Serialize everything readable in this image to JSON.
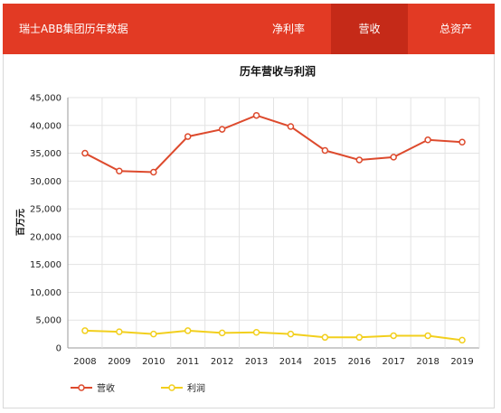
{
  "header": {
    "title": "瑞士ABB集团历年数据",
    "tabs": [
      {
        "label": "净利率",
        "active": false
      },
      {
        "label": "营收",
        "active": true
      },
      {
        "label": "总资产",
        "active": false
      }
    ]
  },
  "colors": {
    "brand": "#e23a24",
    "tab_active": "#c52a18",
    "revenue": "#dd4a2d",
    "profit": "#f2cf1d"
  },
  "chart_data": {
    "type": "line",
    "title": "历年营收与利润",
    "ylabel": "百万元",
    "xlabel": "",
    "categories": [
      "2008",
      "2009",
      "2010",
      "2011",
      "2012",
      "2013",
      "2014",
      "2015",
      "2016",
      "2017",
      "2018",
      "2019"
    ],
    "series": [
      {
        "name": "营收",
        "color": "#dd4a2d",
        "values": [
          35000,
          31800,
          31600,
          38000,
          39300,
          41800,
          39800,
          35500,
          33800,
          34300,
          37400,
          37000
        ]
      },
      {
        "name": "利润",
        "color": "#f2cf1d",
        "values": [
          3100,
          2900,
          2500,
          3100,
          2700,
          2800,
          2500,
          1900,
          1900,
          2200,
          2200,
          1400
        ]
      }
    ],
    "ylim": [
      0,
      45000
    ],
    "yticks": [
      "0",
      "5,000",
      "10,000",
      "15,000",
      "20,000",
      "25,000",
      "30,000",
      "35,000",
      "40,000",
      "45,000"
    ],
    "grid": true,
    "legend": "bottom-left"
  }
}
